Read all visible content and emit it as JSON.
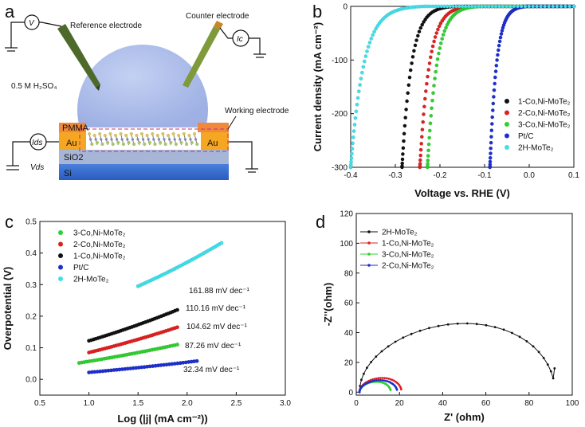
{
  "panels": {
    "a": "a",
    "b": "b",
    "c": "c",
    "d": "d"
  },
  "diagram_a": {
    "reference_electrode": "Reference electrode",
    "counter_electrode": "Counter electrode",
    "electrolyte": "0.5 M H₂SO₄",
    "working_electrode": "Working electrode",
    "pmma": "PMMA",
    "au_left": "Au",
    "au_right": "Au",
    "sio2": "SiO2",
    "si": "Si",
    "v_meter": "V",
    "ic_meter": "Ic",
    "ids_meter": "Ids",
    "vds": "Vds",
    "colors": {
      "droplet": "#a9b9e8",
      "pmma": "#f08a3a",
      "au": "#f5a623",
      "sio2": "#a7b5d6",
      "si": "#3a6fcf",
      "electrode": "#7a9a3a"
    }
  },
  "chart_data": [
    {
      "panel": "b",
      "type": "scatter",
      "xlabel": "Voltage vs. RHE (V)",
      "ylabel": "Current density (mA cm⁻²)",
      "xlim": [
        -0.4,
        0.1
      ],
      "ylim": [
        -300,
        0
      ],
      "xticks": [
        "-0.4",
        "-0.3",
        "-0.2",
        "-0.1",
        "0.0",
        "0.1"
      ],
      "yticks": [
        "0",
        "-100",
        "-200",
        "-300"
      ],
      "legend_position": "bottom-right",
      "series": [
        {
          "name": "1-Co,Ni-MoTe₂",
          "color": "#111111",
          "onset": -0.165,
          "at300": -0.285
        },
        {
          "name": "2-Co,Ni-MoTe₂",
          "color": "#e02020",
          "onset": -0.125,
          "at300": -0.245
        },
        {
          "name": "3-Co,Ni-MoTe₂",
          "color": "#2fd02f",
          "onset": -0.11,
          "at300": -0.228
        },
        {
          "name": "Pt/C",
          "color": "#1d2fcf",
          "onset": -0.005,
          "at300": -0.088
        },
        {
          "name": "2H-MoTe₂",
          "color": "#3fe0ea",
          "onset": -0.235,
          "at300": -0.4
        }
      ]
    },
    {
      "panel": "c",
      "type": "scatter",
      "xlabel": "Log (|j| (mA cm⁻²))",
      "ylabel": "Overpotential (V)",
      "xlim": [
        0.5,
        3.0
      ],
      "ylim": [
        -0.05,
        0.5
      ],
      "xticks": [
        "0.5",
        "1.0",
        "1.5",
        "2.0",
        "2.5",
        "3.0"
      ],
      "yticks": [
        "0.0",
        "0.1",
        "0.2",
        "0.3",
        "0.4",
        "0.5"
      ],
      "legend_position": "top-left",
      "series": [
        {
          "name": "3-Co,Ni-MoTe₂",
          "color": "#2fd02f",
          "x0": 0.9,
          "x1": 1.9,
          "y0": 0.052,
          "y1": 0.11,
          "slope_label": "87.26 mV dec⁻¹"
        },
        {
          "name": "2-Co,Ni-MoTe₂",
          "color": "#e02020",
          "x0": 1.0,
          "x1": 1.9,
          "y0": 0.085,
          "y1": 0.165,
          "slope_label": "104.62 mV dec⁻¹"
        },
        {
          "name": "1-Co,Ni-MoTe₂",
          "color": "#111111",
          "x0": 1.0,
          "x1": 1.9,
          "y0": 0.122,
          "y1": 0.22,
          "slope_label": "110.16 mV dec⁻¹"
        },
        {
          "name": "Pt/C",
          "color": "#1d2fcf",
          "x0": 1.0,
          "x1": 2.1,
          "y0": 0.022,
          "y1": 0.058,
          "slope_label": "32.34 mV dec⁻¹"
        },
        {
          "name": "2H-MoTe₂",
          "color": "#3fe0ea",
          "x0": 1.5,
          "x1": 2.35,
          "y0": 0.295,
          "y1": 0.432,
          "slope_label": "161.88 mV dec⁻¹"
        }
      ]
    },
    {
      "panel": "d",
      "type": "line",
      "xlabel": "Z' (ohm)",
      "ylabel": "-Z''(ohm)",
      "xlim": [
        0,
        100
      ],
      "ylim": [
        -2,
        120
      ],
      "xticks": [
        "0",
        "20",
        "40",
        "60",
        "80",
        "100"
      ],
      "yticks": [
        "0",
        "20",
        "40",
        "60",
        "80",
        "100",
        "120"
      ],
      "legend_position": "top-left",
      "series": [
        {
          "name": "2H-MoTe₂",
          "color": "#111111",
          "r0": 1.5,
          "r1": 92.0,
          "peak": 46.0
        },
        {
          "name": "1-Co,Ni-MoTe₂",
          "color": "#e02020",
          "r0": 1.5,
          "r1": 21.0,
          "peak": 9.5
        },
        {
          "name": "3-Co,Ni-MoTe₂",
          "color": "#2fd02f",
          "r0": 1.5,
          "r1": 16.0,
          "peak": 7.0
        },
        {
          "name": "2-Co,Ni-MoTe₂",
          "color": "#1d2fcf",
          "r0": 1.5,
          "r1": 19.0,
          "peak": 8.0
        }
      ]
    }
  ]
}
